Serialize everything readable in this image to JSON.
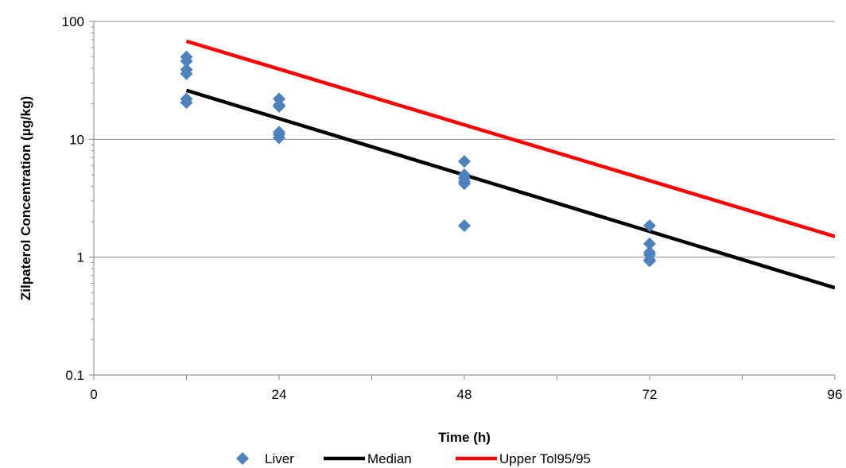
{
  "chart_data": {
    "type": "scatter",
    "xlabel": "Time (h)",
    "ylabel": "Zilpaterol Concentration (µg/kg)",
    "y_scale": "log",
    "xlim": [
      0,
      96
    ],
    "ylim": [
      0.1,
      100
    ],
    "x_ticks": [
      0,
      24,
      48,
      72,
      96
    ],
    "y_ticks": [
      0.1,
      1,
      10,
      100
    ],
    "y_tick_labels": [
      "0.1",
      "1",
      "10",
      "100"
    ],
    "grid": "horizontal",
    "legend_position": "bottom",
    "series": [
      {
        "name": "Liver",
        "kind": "scatter",
        "marker": "diamond",
        "color": "#4F81BD",
        "points": [
          [
            12,
            50
          ],
          [
            12,
            46
          ],
          [
            12,
            39
          ],
          [
            12,
            36
          ],
          [
            12,
            22
          ],
          [
            12,
            20.5
          ],
          [
            24,
            22
          ],
          [
            24,
            19.5
          ],
          [
            24,
            19
          ],
          [
            24,
            11.5
          ],
          [
            24,
            11
          ],
          [
            24,
            10.3
          ],
          [
            48,
            6.5
          ],
          [
            48,
            5
          ],
          [
            48,
            4.7
          ],
          [
            48,
            4.4
          ],
          [
            48,
            4.2
          ],
          [
            48,
            1.85
          ],
          [
            72,
            1.85
          ],
          [
            72,
            1.3
          ],
          [
            72,
            1.1
          ],
          [
            72,
            1.05
          ],
          [
            72,
            0.95
          ],
          [
            72,
            0.93
          ]
        ]
      },
      {
        "name": "Median",
        "kind": "line",
        "color": "#000000",
        "points": [
          [
            12,
            26
          ],
          [
            96,
            0.55
          ]
        ]
      },
      {
        "name": "Upper Tol95/95",
        "kind": "line",
        "color": "#FF0000",
        "points": [
          [
            12,
            68
          ],
          [
            96,
            1.5
          ]
        ]
      }
    ]
  }
}
